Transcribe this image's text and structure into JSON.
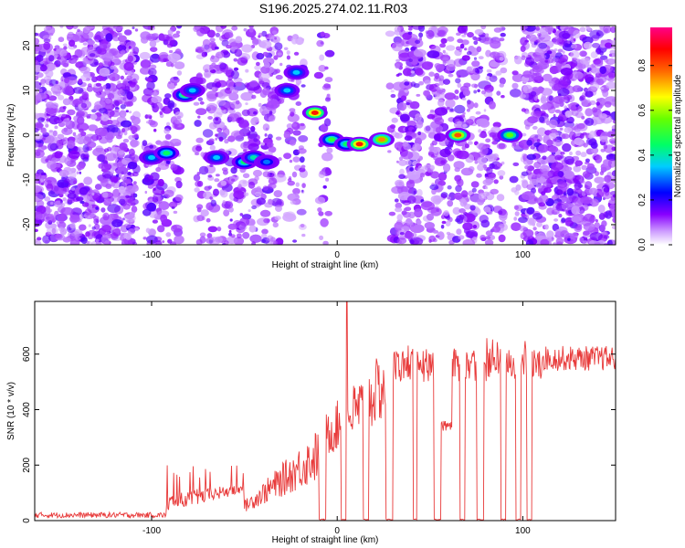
{
  "title": "S196.2025.274.02.11.R03",
  "chart_data": [
    {
      "type": "heatmap",
      "xlabel": "Height of straight line (km)",
      "ylabel": "Frequency (Hz)",
      "xlim": [
        -163,
        150
      ],
      "ylim": [
        -24.5,
        24.5
      ],
      "xticks": [
        -100,
        0,
        100
      ],
      "yticks": [
        20,
        10,
        0,
        -10,
        -20
      ],
      "colorbar": {
        "label": "Normalized spectral amplitude",
        "range": [
          0.0,
          0.97
        ],
        "ticks": [
          0.0,
          0.2,
          0.4,
          0.6,
          0.8
        ],
        "colormap": [
          "#ffffff",
          "#8800ff",
          "#0000ff",
          "#00ffff",
          "#00ff00",
          "#ffff00",
          "#ff0000",
          "#ff0088"
        ]
      },
      "blobs": [
        {
          "x": -100,
          "y": -5,
          "value": 0.35
        },
        {
          "x": -92,
          "y": -4,
          "value": 0.45
        },
        {
          "x": -82,
          "y": 9,
          "value": 0.5
        },
        {
          "x": -78,
          "y": 10,
          "value": 0.35
        },
        {
          "x": -65,
          "y": -5,
          "value": 0.35
        },
        {
          "x": -50,
          "y": -6,
          "value": 0.45
        },
        {
          "x": -45,
          "y": -5,
          "value": 0.4
        },
        {
          "x": -38,
          "y": -6,
          "value": 0.3
        },
        {
          "x": -27,
          "y": 10,
          "value": 0.35
        },
        {
          "x": -22,
          "y": 14,
          "value": 0.35
        },
        {
          "x": -12,
          "y": 5,
          "value": 0.85
        },
        {
          "x": -3,
          "y": -1,
          "value": 0.5
        },
        {
          "x": 5,
          "y": -2,
          "value": 0.45
        },
        {
          "x": 12,
          "y": -2,
          "value": 0.85
        },
        {
          "x": 24,
          "y": -1,
          "value": 0.75
        },
        {
          "x": 65,
          "y": 0,
          "value": 0.8
        },
        {
          "x": 93,
          "y": 0,
          "value": 0.55
        }
      ]
    },
    {
      "type": "line",
      "xlabel": "Height of straight line (km)",
      "ylabel": "SNR (10 * v/v)",
      "xlim": [
        -163,
        150
      ],
      "ylim": [
        0,
        790
      ],
      "xticks": [
        -100,
        0,
        100
      ],
      "yticks": [
        0,
        200,
        400,
        600
      ],
      "color": "#e83a3a",
      "segments": [
        {
          "x_start": -163,
          "x_end": -92,
          "snr_min": 0,
          "snr_max": 40
        },
        {
          "x_start": -92,
          "x_end": -50,
          "snr_min": 10,
          "snr_max": 210
        },
        {
          "x_start": -50,
          "x_end": -10,
          "snr_min": 20,
          "snr_max": 400
        },
        {
          "x_start": -10,
          "x_end": 30,
          "snr_min": 20,
          "snr_max": 790
        },
        {
          "x_start": 30,
          "x_end": 110,
          "snr_min": 0,
          "snr_max": 700
        },
        {
          "x_start": 110,
          "x_end": 150,
          "snr_min": 500,
          "snr_max": 690
        }
      ],
      "dropouts": [
        [
          -10,
          -6
        ],
        [
          2,
          5
        ],
        [
          14,
          17
        ],
        [
          26,
          30
        ],
        [
          41,
          43
        ],
        [
          52,
          56
        ],
        [
          66,
          69
        ],
        [
          75,
          79
        ],
        [
          88,
          91
        ],
        [
          96,
          99
        ],
        [
          102,
          105
        ]
      ],
      "spike_x": 5,
      "spike_y": 790
    }
  ]
}
